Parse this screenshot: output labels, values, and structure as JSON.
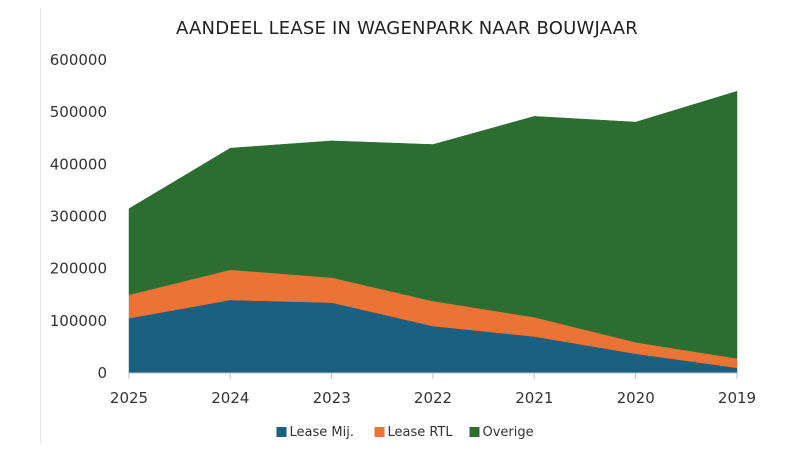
{
  "chart_data": {
    "type": "area",
    "stacked": true,
    "title": "AANDEEL LEASE IN WAGENPARK NAAR BOUWJAAR",
    "xlabel": "",
    "ylabel": "",
    "categories": [
      "2025",
      "2024",
      "2023",
      "2022",
      "2021",
      "2020",
      "2019"
    ],
    "ylim": [
      0,
      600000
    ],
    "yticks": [
      0,
      100000,
      200000,
      300000,
      400000,
      500000,
      600000
    ],
    "ytick_labels": [
      "0",
      "100000",
      "200000",
      "300000",
      "400000",
      "500000",
      "600000"
    ],
    "grid": false,
    "legend_position": "bottom",
    "series": [
      {
        "name": "Lease Mij.",
        "color": "#1b6080",
        "values": [
          105000,
          140000,
          135000,
          90000,
          70000,
          37000,
          10000
        ]
      },
      {
        "name": "Lease RTL",
        "color": "#ea7335",
        "values": [
          45000,
          58000,
          48000,
          48000,
          37000,
          22000,
          18000
        ]
      },
      {
        "name": "Overige",
        "color": "#2b6e30",
        "values": [
          165000,
          233000,
          262000,
          300000,
          385000,
          422000,
          512000
        ]
      }
    ]
  }
}
